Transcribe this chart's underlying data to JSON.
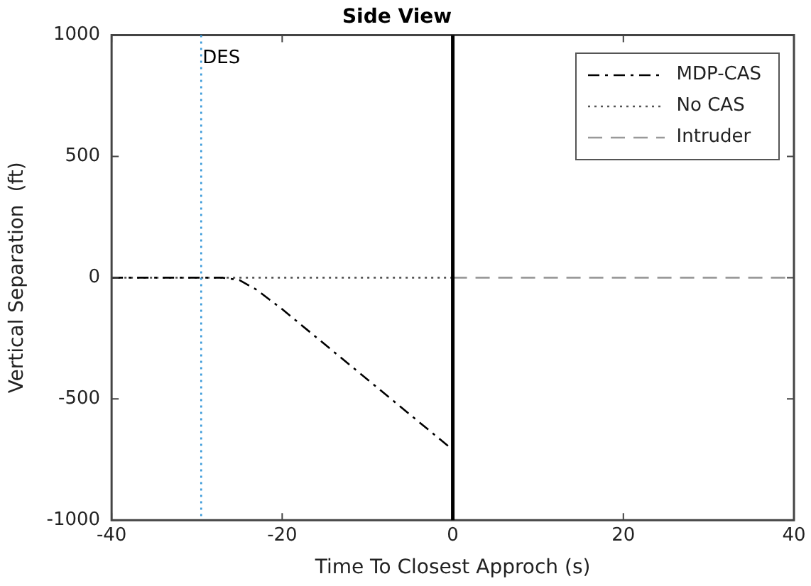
{
  "chart_data": {
    "type": "line",
    "title": "Side View",
    "xlabel": "Time To Closest Approch (s)",
    "ylabel": "Vertical Separation  (ft)",
    "xlim": [
      -40,
      40
    ],
    "xticks": [
      -40,
      -20,
      0,
      20,
      40
    ],
    "ylim": [
      -1000,
      1000
    ],
    "yticks": [
      -1000,
      -500,
      0,
      500,
      1000
    ],
    "grid": false,
    "legend": "top right",
    "marker": "none",
    "series": [
      {
        "name": "MDP-CAS",
        "color": "#000000",
        "line_style": "dashdot",
        "x": [
          -40,
          -27,
          -25,
          -23,
          -20,
          -10,
          0
        ],
        "values": [
          0,
          0,
          -10,
          -50,
          -130,
          -420,
          -710
        ]
      },
      {
        "name": "No CAS",
        "color": "#555555",
        "line_style": "dotted",
        "x": [
          -40,
          0
        ],
        "values": [
          0,
          0
        ]
      },
      {
        "name": "Intruder",
        "color": "#999999",
        "line_style": "dashed",
        "x": [
          0,
          40
        ],
        "values": [
          0,
          0
        ]
      }
    ],
    "ref_lines": [
      {
        "axis": "x",
        "value": -29.5,
        "label": "DES",
        "color": "#3a9ad9",
        "line_style": "dotted"
      },
      {
        "axis": "x",
        "value": 0,
        "label": null,
        "color": "#000000",
        "line_style": "solid"
      }
    ]
  }
}
